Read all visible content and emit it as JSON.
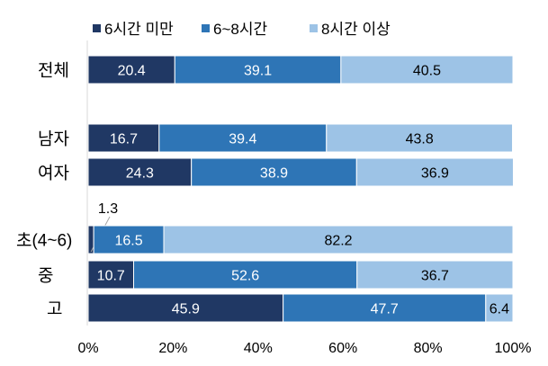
{
  "chart_data": {
    "type": "bar",
    "orientation": "horizontal",
    "stacked": true,
    "categories": [
      "전체",
      "남자",
      "여자",
      "초(4~6)",
      "중",
      "고"
    ],
    "series": [
      {
        "name": "6시간 미만",
        "color": "#203864",
        "values": [
          20.4,
          16.7,
          24.3,
          1.3,
          10.7,
          45.9
        ]
      },
      {
        "name": "6~8시간",
        "color": "#2e75b6",
        "values": [
          39.1,
          39.4,
          38.9,
          16.5,
          52.6,
          47.7
        ]
      },
      {
        "name": "8시간 이상",
        "color": "#9dc3e6",
        "values": [
          40.5,
          43.8,
          36.9,
          82.2,
          36.7,
          6.4
        ]
      }
    ],
    "xlim": [
      0,
      100
    ],
    "xticks": [
      "0%",
      "20%",
      "40%",
      "60%",
      "80%",
      "100%"
    ],
    "legend": "top",
    "grid": false
  }
}
